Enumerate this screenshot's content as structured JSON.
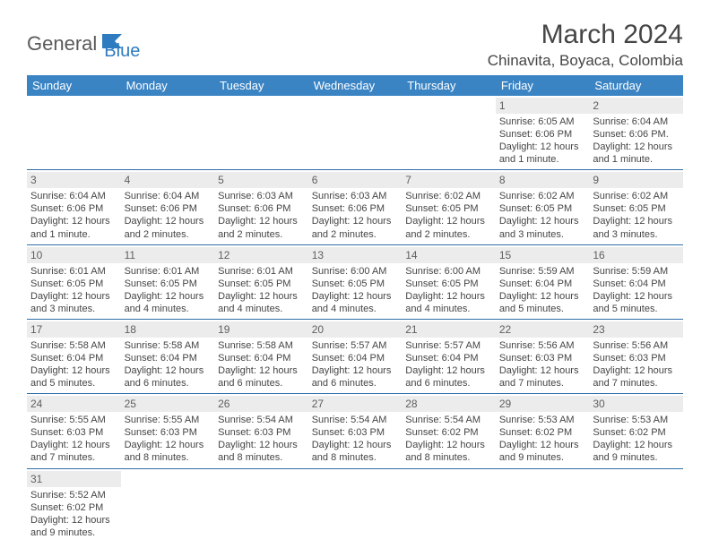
{
  "logo": {
    "text1": "General",
    "text2": "Blue"
  },
  "title": "March 2024",
  "location": "Chinavita, Boyaca, Colombia",
  "colors": {
    "header_bg": "#3a84c4",
    "header_text": "#ffffff",
    "daynum_bg": "#ececec",
    "daynum_text": "#5f5f5f",
    "body_text": "#454545",
    "border": "#2f6fa8"
  },
  "weekdays": [
    "Sunday",
    "Monday",
    "Tuesday",
    "Wednesday",
    "Thursday",
    "Friday",
    "Saturday"
  ],
  "weeks": [
    [
      null,
      null,
      null,
      null,
      null,
      {
        "n": "1",
        "sunrise": "Sunrise: 6:05 AM",
        "sunset": "Sunset: 6:06 PM",
        "daylight": "Daylight: 12 hours and 1 minute."
      },
      {
        "n": "2",
        "sunrise": "Sunrise: 6:04 AM",
        "sunset": "Sunset: 6:06 PM.",
        "daylight": "Daylight: 12 hours and 1 minute."
      }
    ],
    [
      {
        "n": "3",
        "sunrise": "Sunrise: 6:04 AM",
        "sunset": "Sunset: 6:06 PM",
        "daylight": "Daylight: 12 hours and 1 minute."
      },
      {
        "n": "4",
        "sunrise": "Sunrise: 6:04 AM",
        "sunset": "Sunset: 6:06 PM",
        "daylight": "Daylight: 12 hours and 2 minutes."
      },
      {
        "n": "5",
        "sunrise": "Sunrise: 6:03 AM",
        "sunset": "Sunset: 6:06 PM",
        "daylight": "Daylight: 12 hours and 2 minutes."
      },
      {
        "n": "6",
        "sunrise": "Sunrise: 6:03 AM",
        "sunset": "Sunset: 6:06 PM",
        "daylight": "Daylight: 12 hours and 2 minutes."
      },
      {
        "n": "7",
        "sunrise": "Sunrise: 6:02 AM",
        "sunset": "Sunset: 6:05 PM",
        "daylight": "Daylight: 12 hours and 2 minutes."
      },
      {
        "n": "8",
        "sunrise": "Sunrise: 6:02 AM",
        "sunset": "Sunset: 6:05 PM",
        "daylight": "Daylight: 12 hours and 3 minutes."
      },
      {
        "n": "9",
        "sunrise": "Sunrise: 6:02 AM",
        "sunset": "Sunset: 6:05 PM",
        "daylight": "Daylight: 12 hours and 3 minutes."
      }
    ],
    [
      {
        "n": "10",
        "sunrise": "Sunrise: 6:01 AM",
        "sunset": "Sunset: 6:05 PM",
        "daylight": "Daylight: 12 hours and 3 minutes."
      },
      {
        "n": "11",
        "sunrise": "Sunrise: 6:01 AM",
        "sunset": "Sunset: 6:05 PM",
        "daylight": "Daylight: 12 hours and 4 minutes."
      },
      {
        "n": "12",
        "sunrise": "Sunrise: 6:01 AM",
        "sunset": "Sunset: 6:05 PM",
        "daylight": "Daylight: 12 hours and 4 minutes."
      },
      {
        "n": "13",
        "sunrise": "Sunrise: 6:00 AM",
        "sunset": "Sunset: 6:05 PM",
        "daylight": "Daylight: 12 hours and 4 minutes."
      },
      {
        "n": "14",
        "sunrise": "Sunrise: 6:00 AM",
        "sunset": "Sunset: 6:05 PM",
        "daylight": "Daylight: 12 hours and 4 minutes."
      },
      {
        "n": "15",
        "sunrise": "Sunrise: 5:59 AM",
        "sunset": "Sunset: 6:04 PM",
        "daylight": "Daylight: 12 hours and 5 minutes."
      },
      {
        "n": "16",
        "sunrise": "Sunrise: 5:59 AM",
        "sunset": "Sunset: 6:04 PM",
        "daylight": "Daylight: 12 hours and 5 minutes."
      }
    ],
    [
      {
        "n": "17",
        "sunrise": "Sunrise: 5:58 AM",
        "sunset": "Sunset: 6:04 PM",
        "daylight": "Daylight: 12 hours and 5 minutes."
      },
      {
        "n": "18",
        "sunrise": "Sunrise: 5:58 AM",
        "sunset": "Sunset: 6:04 PM",
        "daylight": "Daylight: 12 hours and 6 minutes."
      },
      {
        "n": "19",
        "sunrise": "Sunrise: 5:58 AM",
        "sunset": "Sunset: 6:04 PM",
        "daylight": "Daylight: 12 hours and 6 minutes."
      },
      {
        "n": "20",
        "sunrise": "Sunrise: 5:57 AM",
        "sunset": "Sunset: 6:04 PM",
        "daylight": "Daylight: 12 hours and 6 minutes."
      },
      {
        "n": "21",
        "sunrise": "Sunrise: 5:57 AM",
        "sunset": "Sunset: 6:04 PM",
        "daylight": "Daylight: 12 hours and 6 minutes."
      },
      {
        "n": "22",
        "sunrise": "Sunrise: 5:56 AM",
        "sunset": "Sunset: 6:03 PM",
        "daylight": "Daylight: 12 hours and 7 minutes."
      },
      {
        "n": "23",
        "sunrise": "Sunrise: 5:56 AM",
        "sunset": "Sunset: 6:03 PM",
        "daylight": "Daylight: 12 hours and 7 minutes."
      }
    ],
    [
      {
        "n": "24",
        "sunrise": "Sunrise: 5:55 AM",
        "sunset": "Sunset: 6:03 PM",
        "daylight": "Daylight: 12 hours and 7 minutes."
      },
      {
        "n": "25",
        "sunrise": "Sunrise: 5:55 AM",
        "sunset": "Sunset: 6:03 PM",
        "daylight": "Daylight: 12 hours and 8 minutes."
      },
      {
        "n": "26",
        "sunrise": "Sunrise: 5:54 AM",
        "sunset": "Sunset: 6:03 PM",
        "daylight": "Daylight: 12 hours and 8 minutes."
      },
      {
        "n": "27",
        "sunrise": "Sunrise: 5:54 AM",
        "sunset": "Sunset: 6:03 PM",
        "daylight": "Daylight: 12 hours and 8 minutes."
      },
      {
        "n": "28",
        "sunrise": "Sunrise: 5:54 AM",
        "sunset": "Sunset: 6:02 PM",
        "daylight": "Daylight: 12 hours and 8 minutes."
      },
      {
        "n": "29",
        "sunrise": "Sunrise: 5:53 AM",
        "sunset": "Sunset: 6:02 PM",
        "daylight": "Daylight: 12 hours and 9 minutes."
      },
      {
        "n": "30",
        "sunrise": "Sunrise: 5:53 AM",
        "sunset": "Sunset: 6:02 PM",
        "daylight": "Daylight: 12 hours and 9 minutes."
      }
    ],
    [
      {
        "n": "31",
        "sunrise": "Sunrise: 5:52 AM",
        "sunset": "Sunset: 6:02 PM",
        "daylight": "Daylight: 12 hours and 9 minutes."
      },
      null,
      null,
      null,
      null,
      null,
      null
    ]
  ]
}
